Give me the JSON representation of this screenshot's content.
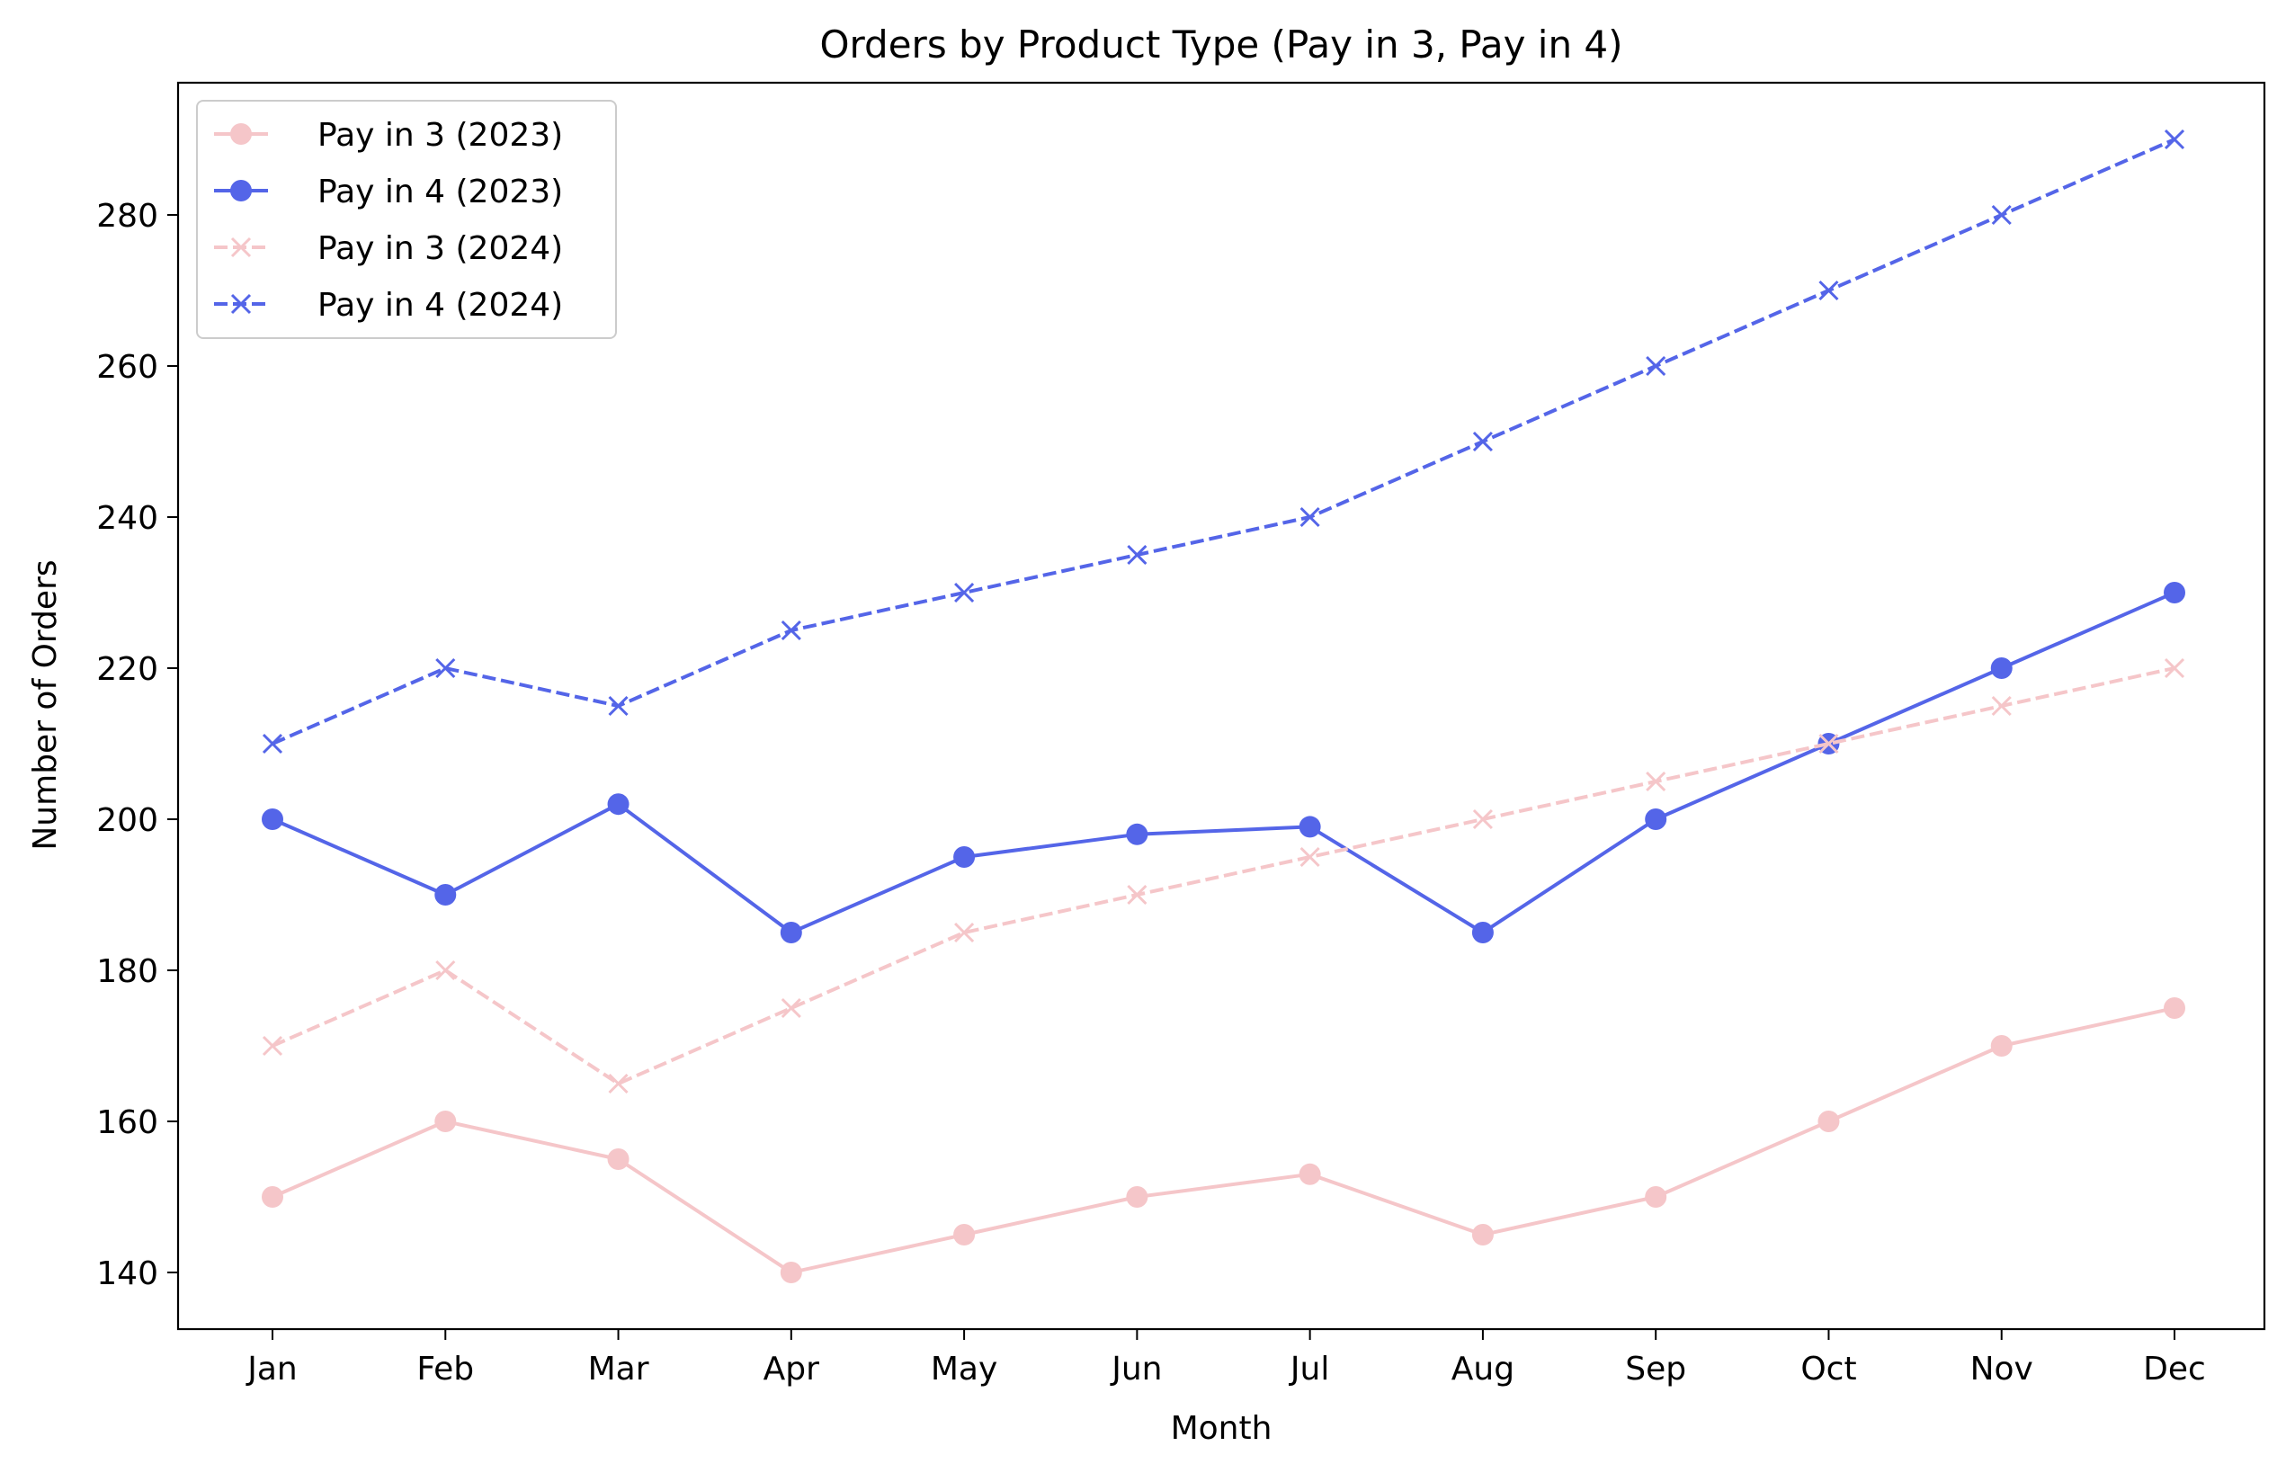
{
  "chart_data": {
    "type": "line",
    "title": "Orders by Product Type (Pay in 3, Pay in 4)",
    "xlabel": "Month",
    "ylabel": "Number of Orders",
    "categories": [
      "Jan",
      "Feb",
      "Mar",
      "Apr",
      "May",
      "Jun",
      "Jul",
      "Aug",
      "Sep",
      "Oct",
      "Nov",
      "Dec"
    ],
    "ylim": [
      132.5,
      297.5
    ],
    "yticks": [
      140,
      160,
      180,
      200,
      220,
      240,
      260,
      280
    ],
    "grid": false,
    "legend_position": "upper-left",
    "series": [
      {
        "name": "Pay in 3 (2023)",
        "values": [
          150,
          160,
          155,
          140,
          145,
          150,
          153,
          145,
          150,
          160,
          170,
          175
        ],
        "color": "#f5c6c9",
        "dash": "solid",
        "marker": "circle"
      },
      {
        "name": "Pay in 4 (2023)",
        "values": [
          200,
          190,
          202,
          185,
          195,
          198,
          199,
          185,
          200,
          210,
          220,
          230
        ],
        "color": "#5465e8",
        "dash": "solid",
        "marker": "circle"
      },
      {
        "name": "Pay in 3 (2024)",
        "values": [
          170,
          180,
          165,
          175,
          185,
          190,
          195,
          200,
          205,
          210,
          215,
          220
        ],
        "color": "#f5c6c9",
        "dash": "dashed",
        "marker": "x"
      },
      {
        "name": "Pay in 4 (2024)",
        "values": [
          210,
          220,
          215,
          225,
          230,
          235,
          240,
          250,
          260,
          270,
          280,
          290
        ],
        "color": "#5465e8",
        "dash": "dashed",
        "marker": "x"
      }
    ]
  }
}
